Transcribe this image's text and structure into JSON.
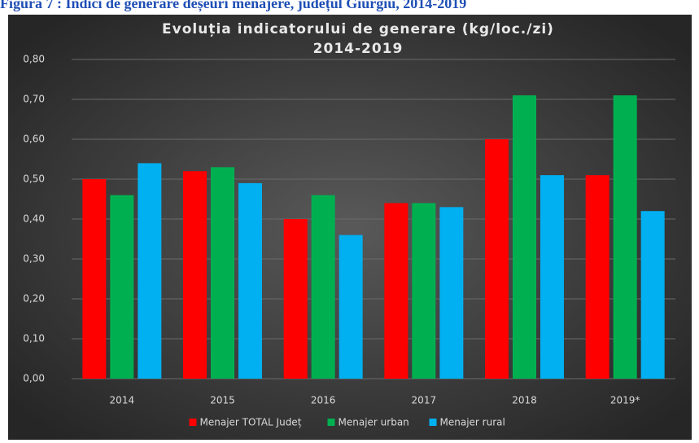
{
  "caption": "Figura 7 : Indici de generare deșeuri menajere, județul Giurgiu, 2014-2019",
  "chart_data": {
    "type": "bar",
    "title": "Evoluția indicatorului de generare (kg/loc./zi)",
    "subtitle": "2014-2019",
    "categories": [
      "2014",
      "2015",
      "2016",
      "2017",
      "2018",
      "2019*"
    ],
    "series": [
      {
        "name": "Menajer TOTAL Județ",
        "color": "#ff0000",
        "values": [
          0.5,
          0.52,
          0.4,
          0.44,
          0.6,
          0.51
        ]
      },
      {
        "name": "Menajer urban",
        "color": "#00b050",
        "values": [
          0.46,
          0.53,
          0.46,
          0.44,
          0.71,
          0.71
        ]
      },
      {
        "name": "Menajer rural",
        "color": "#00b0f0",
        "values": [
          0.54,
          0.49,
          0.36,
          0.43,
          0.51,
          0.42
        ]
      }
    ],
    "ylim": [
      0,
      0.8
    ],
    "yticks": [
      {
        "value": 0,
        "label": "0,00"
      },
      {
        "value": 0.1,
        "label": "0,10"
      },
      {
        "value": 0.2,
        "label": "0,20"
      },
      {
        "value": 0.3,
        "label": "0,30"
      },
      {
        "value": 0.4,
        "label": "0,40"
      },
      {
        "value": 0.5,
        "label": "0,50"
      },
      {
        "value": 0.6,
        "label": "0,60"
      },
      {
        "value": 0.7,
        "label": "0,70"
      },
      {
        "value": 0.8,
        "label": "0,80"
      }
    ],
    "grid": true,
    "legend": "bottom"
  }
}
